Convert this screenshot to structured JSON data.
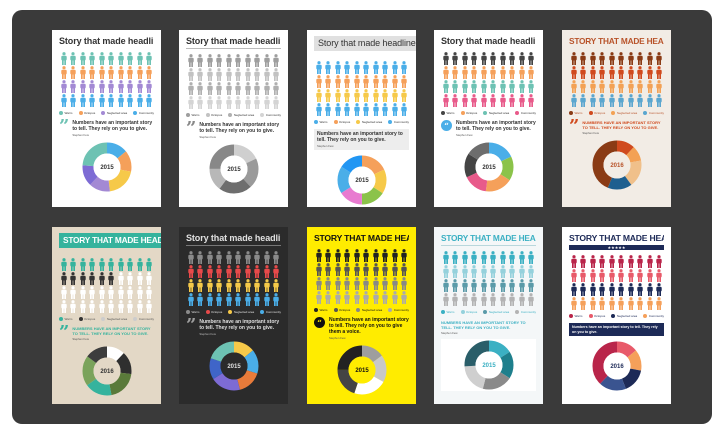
{
  "screen": {
    "title": "Story that made headlines",
    "quote_text": "Numbers have an important story to tell. They rely on you to give.",
    "quote_text_voice": "Numbers have an important story to tell. They rely on you to give them a voice.",
    "author": "Stephen Few",
    "legend_labels": [
      "Warm",
      "Octopus",
      "Neglected area",
      "Community"
    ],
    "years": {
      "a": "2015",
      "b": "2016"
    }
  },
  "colors": {
    "board": "#3a3a3a"
  },
  "cards": [
    {
      "name": "white-pastel",
      "bg": "#ffffff",
      "text": "#333333",
      "title_style": "plain",
      "quote_style": "mark",
      "quote_color": "#6dc2b3",
      "donut_center": "#ffffff",
      "year": "2015",
      "palette": [
        "#6dc2b3",
        "#f5a05a",
        "#a389d4",
        "#4aaee8"
      ],
      "counts": [
        10,
        10,
        10,
        10
      ],
      "donut": [
        0.14,
        0.14,
        0.2,
        0.14,
        0.14,
        0.24
      ],
      "donut_colors": [
        "#4aaee8",
        "#f5a05a",
        "#f6c949",
        "#a389d4",
        "#7d6bd4",
        "#6dc2b3"
      ]
    },
    {
      "name": "grayscale",
      "bg": "#ffffff",
      "text": "#333333",
      "title_style": "rule",
      "rule_color": "#bbbbbb",
      "quote_style": "mark",
      "quote_color": "#888888",
      "donut_center": "#ffffff",
      "year": "2015",
      "palette": [
        "#9e9e9e",
        "#c2c2c2",
        "#b0b0b0",
        "#d4d4d4"
      ],
      "counts": [
        10,
        10,
        10,
        10
      ],
      "donut": [
        0.18,
        0.2,
        0.22,
        0.15,
        0.25
      ],
      "donut_colors": [
        "#cfcfcf",
        "#9a9a9a",
        "#6e6e6e",
        "#b8b8b8",
        "#888888"
      ]
    },
    {
      "name": "boxed-bright",
      "bg": "#ffffff",
      "text": "#333333",
      "title_style": "boxed",
      "box_color": "#e0e0e0",
      "quote_style": "box",
      "quote_color": "#555555",
      "donut_center": "#ffffff",
      "year": "2015",
      "palette": [
        "#4aaee8",
        "#f5a05a",
        "#f6c949",
        "#4aaee8"
      ],
      "counts": [
        10,
        10,
        10,
        10
      ],
      "donut": [
        0.18,
        0.16,
        0.16,
        0.16,
        0.18,
        0.16
      ],
      "donut_colors": [
        "#f5a05a",
        "#f6c949",
        "#8bc34a",
        "#e87bd0",
        "#4aaee8",
        "#2196f3"
      ]
    },
    {
      "name": "dark-multicolor",
      "bg": "#ffffff",
      "text": "#333333",
      "title_style": "plain",
      "quote_style": "badge",
      "quote_color": "#4aaee8",
      "donut_center": "#ffffff",
      "year": "2015",
      "palette": [
        "#444444",
        "#f5a05a",
        "#6dc2b3",
        "#e85a8a"
      ],
      "counts": [
        10,
        10,
        10,
        10
      ],
      "donut": [
        0.18,
        0.16,
        0.18,
        0.16,
        0.16,
        0.16
      ],
      "donut_colors": [
        "#4aaee8",
        "#8bc34a",
        "#f5a05a",
        "#e85a8a",
        "#444444",
        "#6d6d6d"
      ]
    },
    {
      "name": "retro-earth",
      "bg": "#f2ece5",
      "text": "#b8532a",
      "title_style": "upper",
      "quote_style": "mark",
      "quote_color": "#d04a1e",
      "quote_upper": true,
      "donut_center": "#f2ece5",
      "year": "2016",
      "palette": [
        "#8a3b15",
        "#d04a1e",
        "#f3a154",
        "#5aa6cf"
      ],
      "counts": [
        10,
        10,
        10,
        10
      ],
      "donut": [
        0.12,
        0.1,
        0.18,
        0.16,
        0.44
      ],
      "donut_colors": [
        "#d04a1e",
        "#f3a154",
        "#f0c08a",
        "#1e5f8f",
        "#8a3b15"
      ]
    },
    {
      "name": "teal-beige",
      "bg": "#e3d8c6",
      "text": "#ffffff",
      "title_style": "boxed",
      "box_color": "#35b39d",
      "quote_style": "mark",
      "quote_color": "#35b39d",
      "quote_upper": true,
      "donut_center": "#e3d8c6",
      "year": "2016",
      "palette": [
        "#35b39d",
        "#333333",
        "#ffffff",
        "#ffffff"
      ],
      "counts": [
        10,
        6,
        9,
        10
      ],
      "donut": [
        0.12,
        0.15,
        0.2,
        0.18,
        0.2,
        0.15
      ],
      "donut_colors": [
        "#ffffff",
        "#2f2f2f",
        "#5a7a3a",
        "#35b39d",
        "#7aa35b",
        "#3d3d3d"
      ]
    },
    {
      "name": "dark-mode",
      "bg": "#2b2b2b",
      "text": "#e0e0e0",
      "title_style": "rule",
      "rule_color": "#777777",
      "quote_style": "mark",
      "quote_color": "#9e9e9e",
      "donut_center": "#2b2b2b",
      "year": "2015",
      "palette": [
        "#8a8a8a",
        "#e84a4a",
        "#f6c949",
        "#4aaee8"
      ],
      "counts": [
        10,
        10,
        10,
        10
      ],
      "donut": [
        0.14,
        0.16,
        0.16,
        0.2,
        0.14,
        0.2
      ],
      "donut_colors": [
        "#f6c949",
        "#4aaee8",
        "#e87b3a",
        "#7d6bd4",
        "#3f65c8",
        "#6dc2b3"
      ]
    },
    {
      "name": "yellow-black",
      "bg": "#ffec00",
      "text": "#111111",
      "title_style": "upper-bold",
      "quote_style": "badge",
      "quote_color": "#111111",
      "badge_text": "#ffec00",
      "quote_voice": true,
      "donut_center": "#ffec00",
      "year": "2015",
      "palette": [
        "#222222",
        "#555555",
        "#888888",
        "#aaaaaa"
      ],
      "counts": [
        10,
        10,
        10,
        10
      ],
      "donut": [
        0.15,
        0.18,
        0.22,
        0.2,
        0.25
      ],
      "donut_colors": [
        "#9e9e9e",
        "#c8c8c8",
        "#ffffff",
        "#444444",
        "#222222"
      ]
    },
    {
      "name": "light-teal",
      "bg": "#f4f7f8",
      "text": "#3bb0c3",
      "title_style": "upper-rule",
      "rule_color": "#b9d7dc",
      "quote_style": "none",
      "quote_color": "#3bb0c3",
      "quote_upper": true,
      "donut_center": "#ffffff",
      "year": "2015",
      "palette": [
        "#3bb0c3",
        "#95d1dc",
        "#5a9aa8",
        "#b3b3b3"
      ],
      "counts": [
        10,
        10,
        10,
        10
      ],
      "donut": [
        0.16,
        0.18,
        0.2,
        0.2,
        0.26
      ],
      "donut_colors": [
        "#3bb0c3",
        "#1e7f8c",
        "#8a8a8a",
        "#cfcfcf",
        "#2a5e69"
      ]
    },
    {
      "name": "navy-red",
      "bg": "#ffffff",
      "text": "#1d2a57",
      "title_style": "upper-stars",
      "quote_style": "banner",
      "quote_color": "#1d2a57",
      "donut_center": "#ffffff",
      "year": "2016",
      "palette": [
        "#b9254a",
        "#e85a6a",
        "#1d2a57",
        "#f5a05a"
      ],
      "counts": [
        10,
        10,
        10,
        10
      ],
      "donut": [
        0.14,
        0.14,
        0.16,
        0.18,
        0.38
      ],
      "donut_colors": [
        "#e85a6a",
        "#f5a05a",
        "#1d2a57",
        "#3a5490",
        "#b9254a"
      ]
    }
  ]
}
